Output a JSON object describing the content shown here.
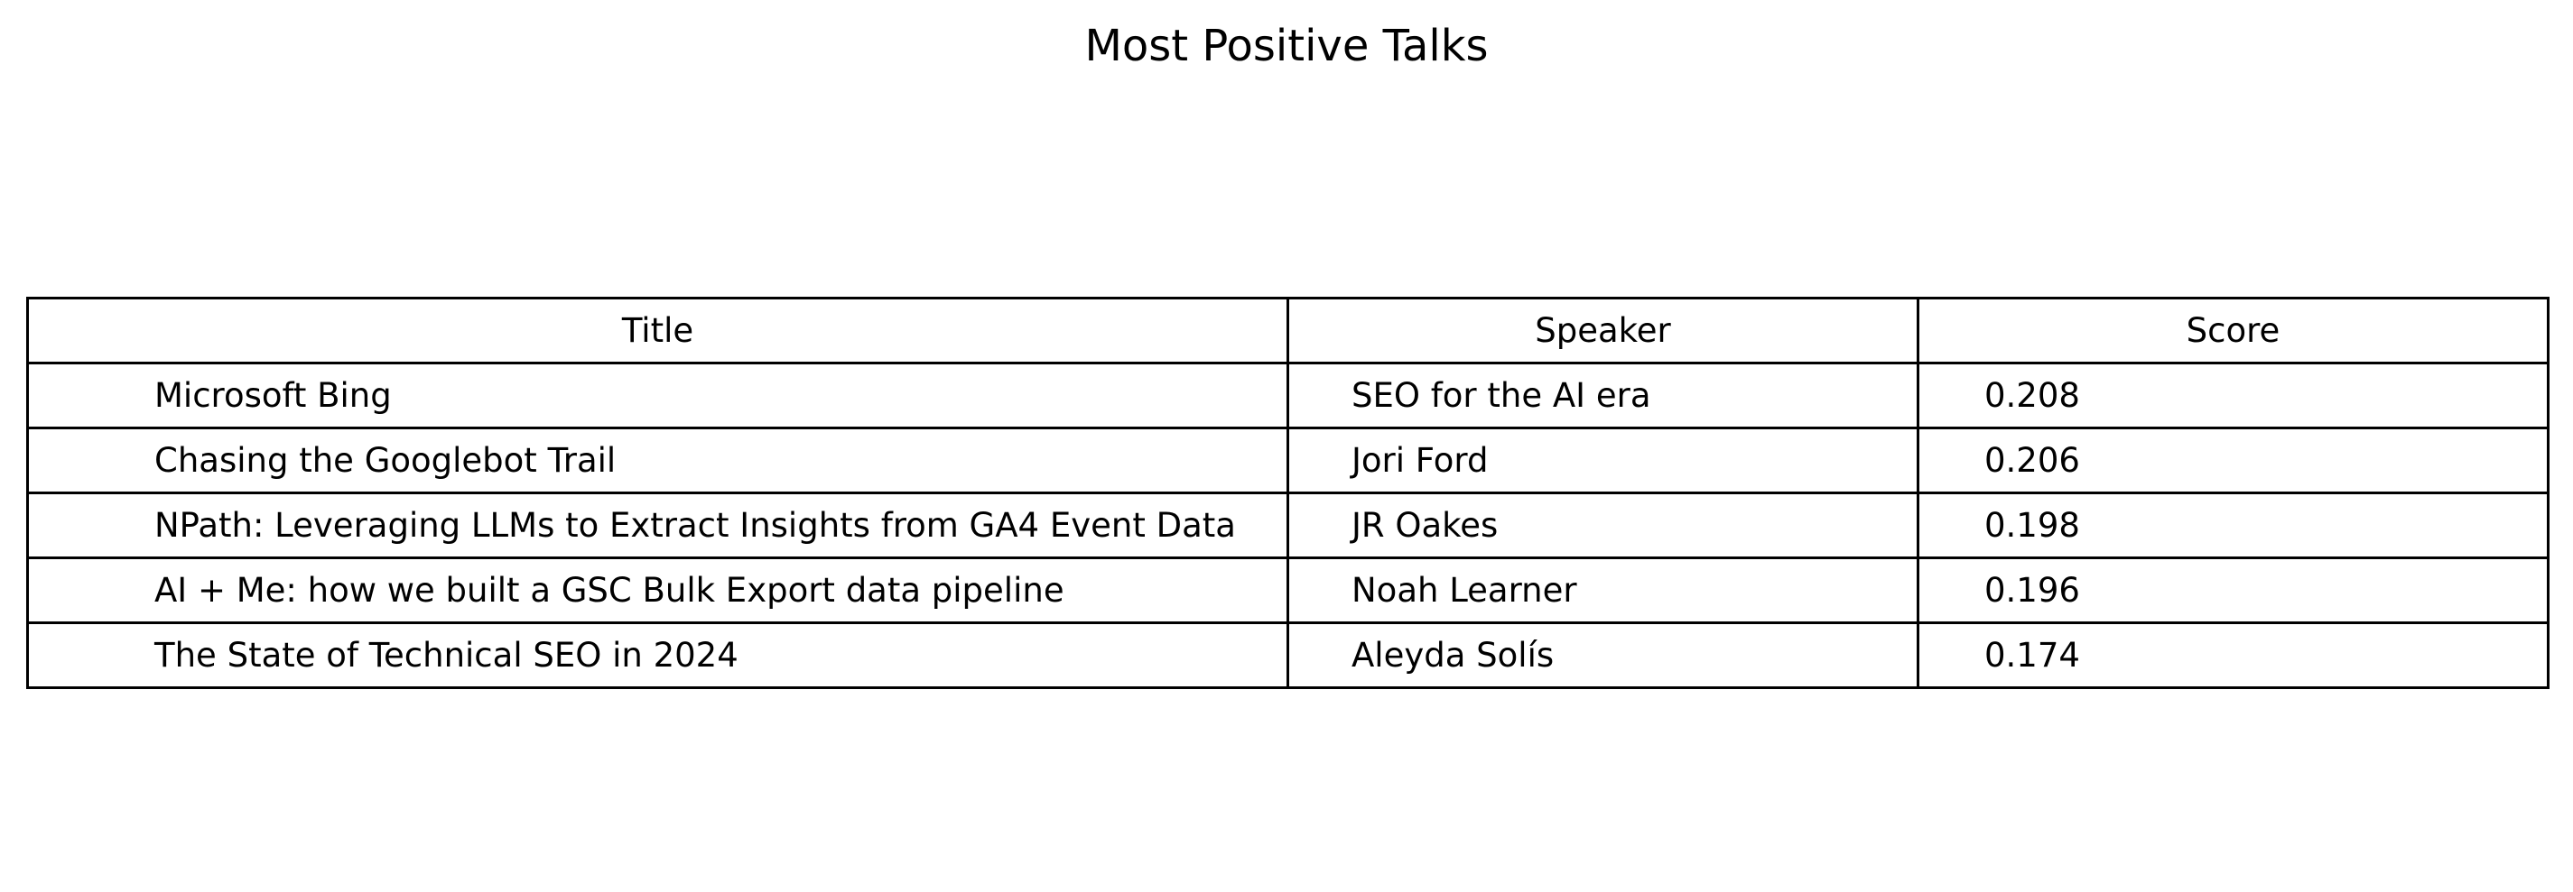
{
  "chart_data": {
    "type": "table",
    "title": "Most Positive Talks",
    "columns": [
      "Title",
      "Speaker",
      "Score"
    ],
    "rows": [
      [
        "Microsoft Bing",
        "SEO for the AI era",
        "0.208"
      ],
      [
        "Chasing the Googlebot Trail",
        "Jori Ford",
        "0.206"
      ],
      [
        "NPath: Leveraging LLMs to Extract Insights from GA4 Event Data",
        "JR Oakes",
        "0.198"
      ],
      [
        "AI + Me: how we built a GSC Bulk Export data pipeline",
        "Noah Learner",
        "0.196"
      ],
      [
        "The State of Technical SEO in 2024",
        "Aleyda Solís",
        "0.174"
      ]
    ]
  }
}
